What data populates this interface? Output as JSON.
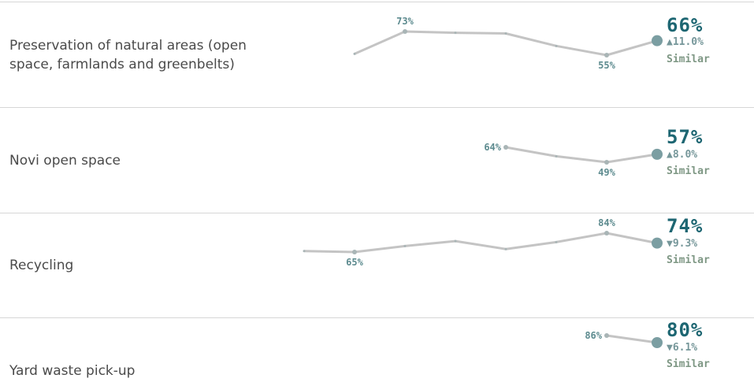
{
  "chart_data": [
    {
      "type": "line",
      "title": "Preservation of natural areas (open space, farmlands and greenbelts)",
      "x": [
        1,
        2,
        3,
        4,
        5,
        6,
        7
      ],
      "values": [
        56,
        73,
        72,
        71.5,
        62,
        55,
        66
      ],
      "point_labels": [
        "",
        "73%",
        "",
        "",
        "",
        "55%",
        ""
      ],
      "current": "66%",
      "delta": "▲11.0%",
      "status": "Similar"
    },
    {
      "type": "line",
      "title": "Novi open space",
      "x": [
        4,
        5,
        6,
        7
      ],
      "values": [
        64,
        55,
        49,
        57
      ],
      "point_labels": [
        "64%",
        "",
        "49%",
        ""
      ],
      "current": "57%",
      "delta": "▲8.0%",
      "status": "Similar"
    },
    {
      "type": "line",
      "title": "Recycling",
      "x": [
        0,
        1,
        2,
        3,
        4,
        5,
        6,
        7
      ],
      "values": [
        66,
        65,
        71,
        76,
        68,
        75,
        84,
        74
      ],
      "point_labels": [
        "",
        "65%",
        "",
        "",
        "",
        "",
        "84%",
        ""
      ],
      "current": "74%",
      "delta": "▼9.3%",
      "status": "Similar"
    },
    {
      "type": "line",
      "title": "Yard waste pick-up",
      "x": [
        6,
        7
      ],
      "values": [
        86,
        80
      ],
      "point_labels": [
        "86%",
        ""
      ],
      "current": "80%",
      "delta": "▼6.1%",
      "status": "Similar"
    }
  ],
  "colors": {
    "line": "#c4c4c4",
    "endpoint": "#7b9ea2",
    "value": "#1d6672",
    "status": "#7e9784"
  }
}
